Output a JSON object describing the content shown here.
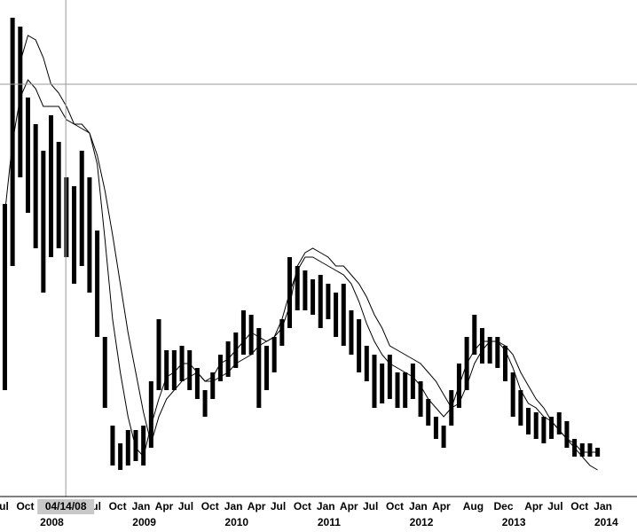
{
  "chart_data": {
    "type": "range-bar",
    "color": "#000000",
    "x": [
      "2007-08",
      "2007-09",
      "2007-10",
      "2007-11",
      "2007-12",
      "2008-01",
      "2008-02",
      "2008-03",
      "2008-04",
      "2008-05",
      "2008-06",
      "2008-07",
      "2008-08",
      "2008-09",
      "2008-10",
      "2008-11",
      "2008-12",
      "2009-01",
      "2009-02",
      "2009-03",
      "2009-04",
      "2009-05",
      "2009-06",
      "2009-07",
      "2009-08",
      "2009-09",
      "2009-10",
      "2009-11",
      "2009-12",
      "2010-01",
      "2010-02",
      "2010-03",
      "2010-04",
      "2010-05",
      "2010-06",
      "2010-07",
      "2010-08",
      "2010-09",
      "2010-10",
      "2010-11",
      "2010-12",
      "2011-01",
      "2011-02",
      "2011-03",
      "2011-04",
      "2011-05",
      "2011-06",
      "2011-07",
      "2011-08",
      "2011-09",
      "2011-10",
      "2011-11",
      "2011-12",
      "2012-01",
      "2012-02",
      "2012-03",
      "2012-04",
      "2012-05",
      "2012-06",
      "2012-07",
      "2012-08",
      "2012-09",
      "2012-10",
      "2012-11",
      "2012-12",
      "2013-01",
      "2013-02",
      "2013-03",
      "2013-04",
      "2013-05",
      "2013-06",
      "2013-07",
      "2013-08",
      "2013-09",
      "2013-10",
      "2013-11",
      "2013-12",
      "2014-01"
    ],
    "high": [
      33,
      54,
      53,
      45,
      42,
      39,
      43,
      40,
      36,
      35,
      39,
      36,
      30,
      18,
      8,
      6,
      7.5,
      7.5,
      8,
      13,
      20,
      16.5,
      16.5,
      17,
      16.5,
      14.5,
      12,
      14,
      16,
      17.5,
      18.5,
      21,
      20.5,
      19,
      17,
      18,
      20,
      27,
      26,
      25.5,
      24.5,
      25,
      24,
      23,
      24,
      21,
      20,
      17,
      16,
      15,
      16,
      14,
      14,
      15,
      13,
      11,
      9,
      8,
      12,
      15,
      18,
      20.5,
      19,
      18,
      18,
      17,
      14,
      12,
      10,
      9.5,
      9,
      9,
      9.5,
      8.5,
      6.5,
      6,
      6,
      5.5
    ],
    "low": [
      12,
      26,
      36,
      32,
      28,
      23,
      27,
      28,
      27,
      24,
      26,
      23,
      18,
      10,
      3.5,
      3,
      3.5,
      4,
      3.5,
      5.5,
      12,
      12,
      12,
      13,
      12,
      11,
      9,
      11,
      13,
      13.5,
      14.5,
      16,
      16,
      10,
      12,
      14,
      17,
      19,
      21,
      21,
      20.5,
      19,
      20,
      18,
      17,
      16,
      14,
      13,
      10,
      10.5,
      11,
      10,
      10,
      11,
      9,
      8,
      6.5,
      5.5,
      8,
      10,
      12,
      16,
      15,
      15,
      14.5,
      13,
      9,
      8,
      7,
      6.5,
      6,
      6.5,
      7,
      5.5,
      4.5,
      4.5,
      4.5,
      4.5
    ],
    "lines": [
      {
        "color": "#000000",
        "values": [
          32,
          40,
          45,
          47,
          46,
          44,
          44,
          44,
          42.5,
          42,
          41.5,
          41,
          37.5,
          29,
          20,
          14,
          9,
          5.5,
          4.5,
          8,
          11,
          13.5,
          14,
          15,
          15,
          14,
          13,
          13.5,
          15,
          15.5,
          16.5,
          17.5,
          18.5,
          18,
          17.5,
          18,
          20,
          23,
          25.5,
          27,
          27,
          26.5,
          26,
          25.5,
          25,
          24,
          22,
          19.5,
          17.5,
          16,
          15,
          14.5,
          14,
          13.5,
          12.5,
          11,
          10,
          9,
          10,
          12.5,
          15,
          16.5,
          17.5,
          17.5,
          17.5,
          16.5,
          14.5,
          12,
          10.5,
          10,
          9,
          8.5,
          7.5,
          6.5,
          6,
          5,
          5,
          5
        ]
      },
      {
        "color": "#000000",
        "values": [
          null,
          null,
          49,
          52,
          51.5,
          49.5,
          46.5,
          45.5,
          44,
          42,
          42,
          41,
          38.5,
          34.5,
          29.5,
          24,
          18.5,
          14,
          9.5,
          6,
          9,
          11,
          12,
          13,
          13.5,
          14,
          13,
          13,
          13.5,
          14,
          15,
          15.5,
          16,
          17,
          17.5,
          18,
          19,
          21.5,
          26,
          27.5,
          28,
          27.5,
          27,
          26,
          26,
          25,
          24,
          22.5,
          20.5,
          19,
          17,
          16.5,
          16,
          15.5,
          15,
          14,
          13,
          11.5,
          10,
          10.5,
          12.5,
          15,
          16.5,
          17.5,
          17.5,
          17,
          16,
          14,
          12.5,
          11,
          10,
          8.5,
          7.5,
          6.5,
          5.5,
          4.5,
          3.5,
          3
        ]
      }
    ],
    "xlim": [
      "2007-07-28",
      "2014-06-20"
    ],
    "ylim": [
      0,
      56
    ],
    "xticks": [
      {
        "value": "2007-07",
        "label": "Jul"
      },
      {
        "value": "2007-10",
        "label": "Oct"
      },
      {
        "value": "2008-07",
        "label": "Jul"
      },
      {
        "value": "2008-10",
        "label": "Oct"
      },
      {
        "value": "2009-01",
        "label": "Jan"
      },
      {
        "value": "2009-04",
        "label": "Apr"
      },
      {
        "value": "2009-07",
        "label": "Jul"
      },
      {
        "value": "2009-10",
        "label": "Oct"
      },
      {
        "value": "2010-01",
        "label": "Jan"
      },
      {
        "value": "2010-04",
        "label": "Apr"
      },
      {
        "value": "2010-07",
        "label": "Jul"
      },
      {
        "value": "2010-10",
        "label": "Oct"
      },
      {
        "value": "2011-01",
        "label": "Jan"
      },
      {
        "value": "2011-04",
        "label": "Apr"
      },
      {
        "value": "2011-07",
        "label": "Jul"
      },
      {
        "value": "2011-10",
        "label": "Oct"
      },
      {
        "value": "2012-01",
        "label": "Jan"
      },
      {
        "value": "2012-04",
        "label": "Apr"
      },
      {
        "value": "2012-08",
        "label": "Aug"
      },
      {
        "value": "2012-12",
        "label": "Dec"
      },
      {
        "value": "2013-04",
        "label": "Apr"
      },
      {
        "value": "2013-07",
        "label": "Jul"
      },
      {
        "value": "2013-10",
        "label": "Oct"
      },
      {
        "value": "2014-01",
        "label": "Jan"
      }
    ],
    "year_ticks": [
      2008,
      2009,
      2010,
      2011,
      2012,
      2013,
      2014
    ],
    "crosshair": {
      "x": "2008-04-14",
      "label": "04/14/08",
      "y": 46.5
    }
  }
}
